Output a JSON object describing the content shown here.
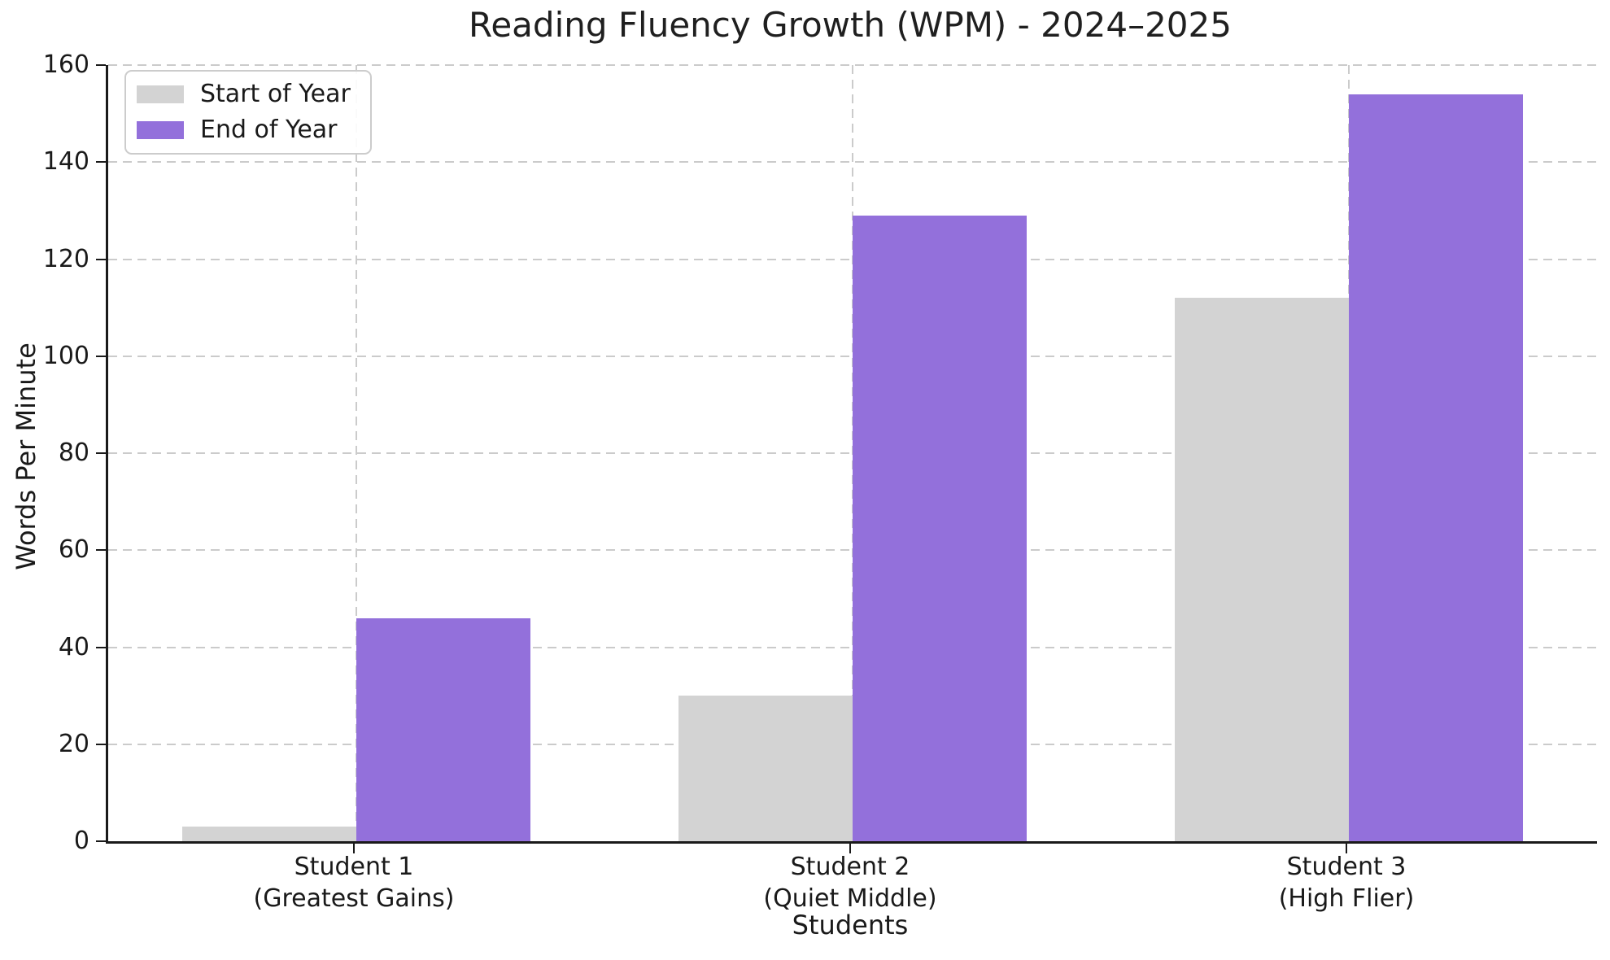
{
  "title": "Reading Fluency Growth (WPM) - 2024–2025",
  "chart_data": {
    "type": "bar",
    "title": "Reading Fluency Growth (WPM) - 2024–2025",
    "xlabel": "Students",
    "ylabel": "Words Per Minute",
    "ylim": [
      0,
      160
    ],
    "yticks": [
      0,
      20,
      40,
      60,
      80,
      100,
      120,
      140,
      160
    ],
    "grid": {
      "horizontal": true,
      "vertical": true,
      "style": "dashed",
      "color": "#cbcbcb"
    },
    "legend_position": "upper-left",
    "bar_width_fraction": 0.35,
    "categories": [
      {
        "label": "Student 1",
        "sublabel": "(Greatest Gains)"
      },
      {
        "label": "Student 2",
        "sublabel": "(Quiet Middle)"
      },
      {
        "label": "Student 3",
        "sublabel": "(High Flier)"
      }
    ],
    "series": [
      {
        "name": "Start of Year",
        "color": "#d3d3d3",
        "values": [
          3,
          30,
          112
        ]
      },
      {
        "name": "End of Year",
        "color": "#9370db",
        "values": [
          46,
          129,
          154
        ]
      }
    ]
  },
  "colors": {
    "background": "#ffffff",
    "text": "#1a1a1a",
    "spine": "#1a1a1a",
    "grid": "#cbcbcb",
    "legend_border": "#cccccc",
    "start_of_year": "#d3d3d3",
    "end_of_year": "#9370db"
  }
}
